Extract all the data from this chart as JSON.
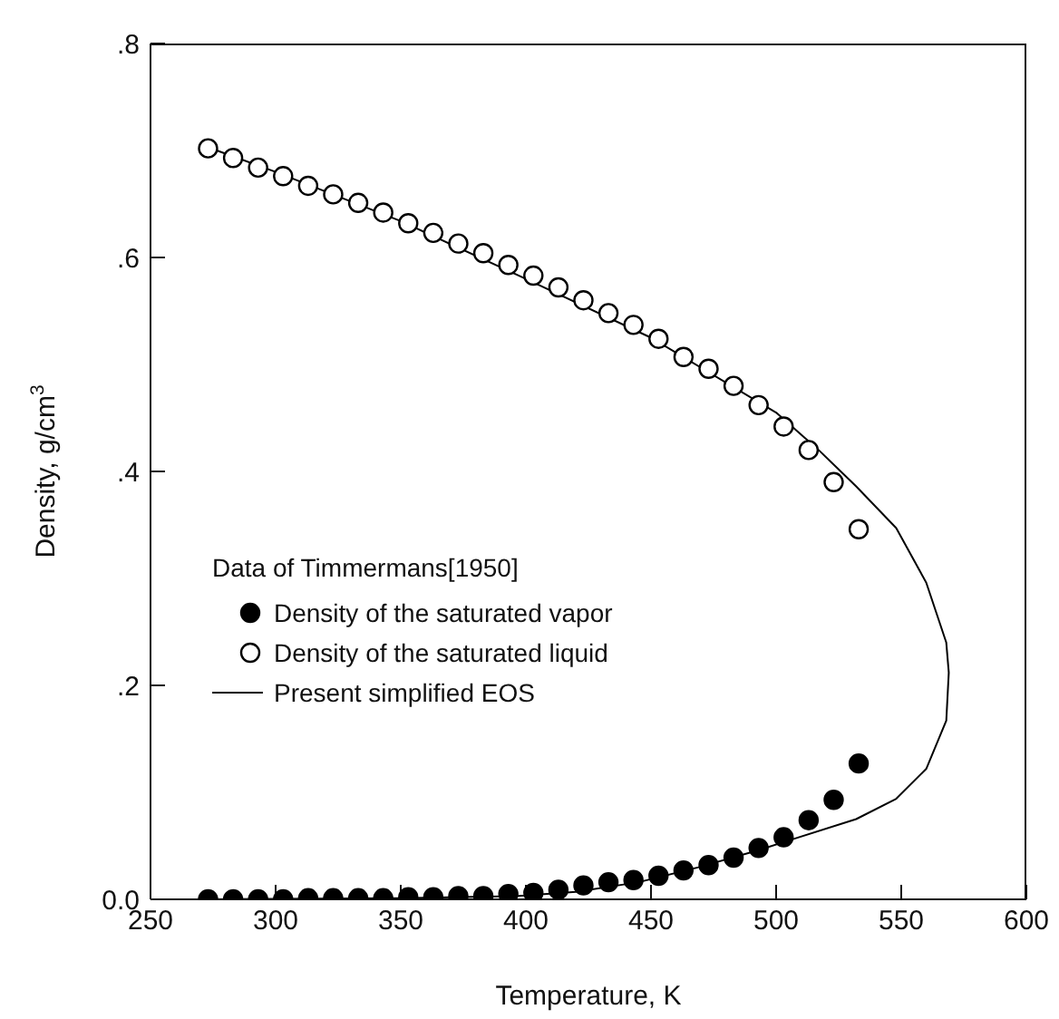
{
  "chart_data": {
    "type": "scatter",
    "xlabel": "Temperature, K",
    "ylabel": "Density, g/cm$^{3}$",
    "legend_title": "Data of Timmermans[1950]",
    "x": [
      273,
      283,
      293,
      303,
      313,
      323,
      333,
      343,
      353,
      363,
      373,
      383,
      393,
      403,
      413,
      423,
      433,
      443,
      453,
      463,
      473,
      483,
      493,
      503,
      513,
      523,
      533
    ],
    "series": [
      {
        "name": "Density of the saturated vapor",
        "color": "#000000",
        "marker": "circle",
        "values": [
          0.0,
          0.0,
          0.0,
          0.0,
          0.001,
          0.001,
          0.001,
          0.001,
          0.002,
          0.002,
          0.003,
          0.003,
          0.005,
          0.006,
          0.009,
          0.013,
          0.016,
          0.018,
          0.022,
          0.027,
          0.032,
          0.039,
          0.048,
          0.058,
          0.074,
          0.093,
          0.127
        ]
      },
      {
        "name": "Density of the saturated liquid",
        "color": "#000000",
        "marker": "circle",
        "values": [
          0.702,
          0.693,
          0.684,
          0.676,
          0.667,
          0.659,
          0.651,
          0.642,
          0.632,
          0.623,
          0.613,
          0.604,
          0.593,
          0.583,
          0.572,
          0.56,
          0.548,
          0.537,
          0.524,
          0.507,
          0.496,
          0.48,
          0.462,
          0.442,
          0.42,
          0.39,
          0.346
        ]
      },
      {
        "name": "Present simplified EOS",
        "type": "line",
        "color": "#000000",
        "marker": "none",
        "line_style": "solid",
        "x": [
          273,
          300,
          350,
          400,
          450,
          500,
          517,
          532,
          548,
          560,
          568,
          569,
          568,
          560,
          548,
          532,
          505,
          493,
          469,
          445,
          420,
          396,
          350,
          273
        ],
        "values": [
          0.703,
          0.68,
          0.634,
          0.58,
          0.525,
          0.455,
          0.42,
          0.386,
          0.347,
          0.296,
          0.24,
          0.212,
          0.167,
          0.122,
          0.094,
          0.075,
          0.055,
          0.046,
          0.03,
          0.016,
          0.007,
          0.003,
          0.001,
          0.0
        ]
      }
    ],
    "xlim": [
      250,
      600
    ],
    "xticks": [
      250,
      300,
      350,
      400,
      450,
      500,
      550,
      600
    ],
    "ylim": [
      0,
      0.8
    ],
    "yticks": [
      {
        "value": 0,
        "label": "0.0"
      },
      {
        "value": 0.2,
        "label": ".2"
      },
      {
        "value": 0.4,
        "label": ".4"
      },
      {
        "value": 0.6,
        "label": ".6"
      },
      {
        "value": 0.8,
        "label": ".8"
      }
    ],
    "grid": false,
    "legend": "bottom left"
  }
}
